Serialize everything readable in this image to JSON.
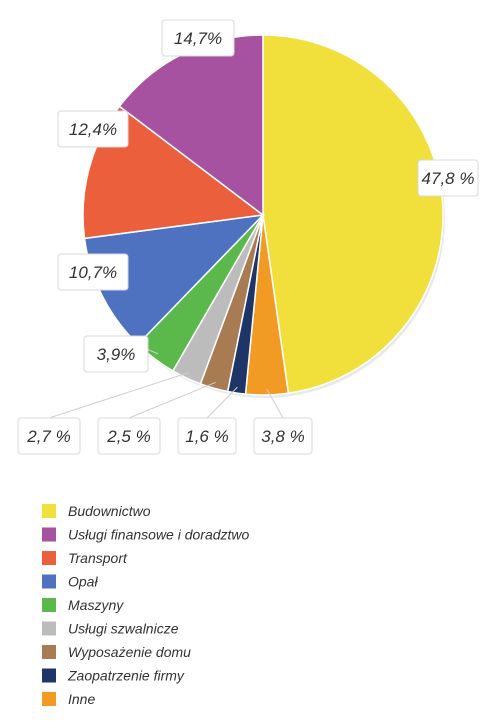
{
  "chart_data": {
    "type": "pie",
    "title": "",
    "legend_position": "bottom-left",
    "slices": [
      {
        "name": "Budownictwo",
        "value": 47.8,
        "label": "47,8 %",
        "color": "#f1df3c"
      },
      {
        "name": "Inne",
        "value": 3.8,
        "label": "3,8 %",
        "color": "#f29b24"
      },
      {
        "name": "Zaopatrzenie firmy",
        "value": 1.6,
        "label": "1,6 %",
        "color": "#1e3567"
      },
      {
        "name": "Wyposażenie domu",
        "value": 2.5,
        "label": "2,5 %",
        "color": "#a87b52"
      },
      {
        "name": "Usługi szwalnicze",
        "value": 2.7,
        "label": "2,7 %",
        "color": "#bcbcbc"
      },
      {
        "name": "Maszyny",
        "value": 3.9,
        "label": "3,9%",
        "color": "#5bb94b"
      },
      {
        "name": "Opał",
        "value": 10.7,
        "label": "10,7%",
        "color": "#4e72c0"
      },
      {
        "name": "Transport",
        "value": 12.4,
        "label": "12,4%",
        "color": "#ec5f3c"
      },
      {
        "name": "Usługi finansowe i doradztwo",
        "value": 14.7,
        "label": "14,7%",
        "color": "#a652a0"
      }
    ],
    "legend": [
      {
        "name": "Budownictwo",
        "color": "#f1df3c"
      },
      {
        "name": "Usługi finansowe i doradztwo",
        "color": "#a652a0"
      },
      {
        "name": "Transport",
        "color": "#ec5f3c"
      },
      {
        "name": "Opał",
        "color": "#4e72c0"
      },
      {
        "name": "Maszyny",
        "color": "#5bb94b"
      },
      {
        "name": "Usługi szwalnicze",
        "color": "#bcbcbc"
      },
      {
        "name": "Wyposażenie domu",
        "color": "#a87b52"
      },
      {
        "name": "Zaopatrzenie firmy",
        "color": "#1e3567"
      },
      {
        "name": "Inne",
        "color": "#f29b24"
      }
    ]
  }
}
